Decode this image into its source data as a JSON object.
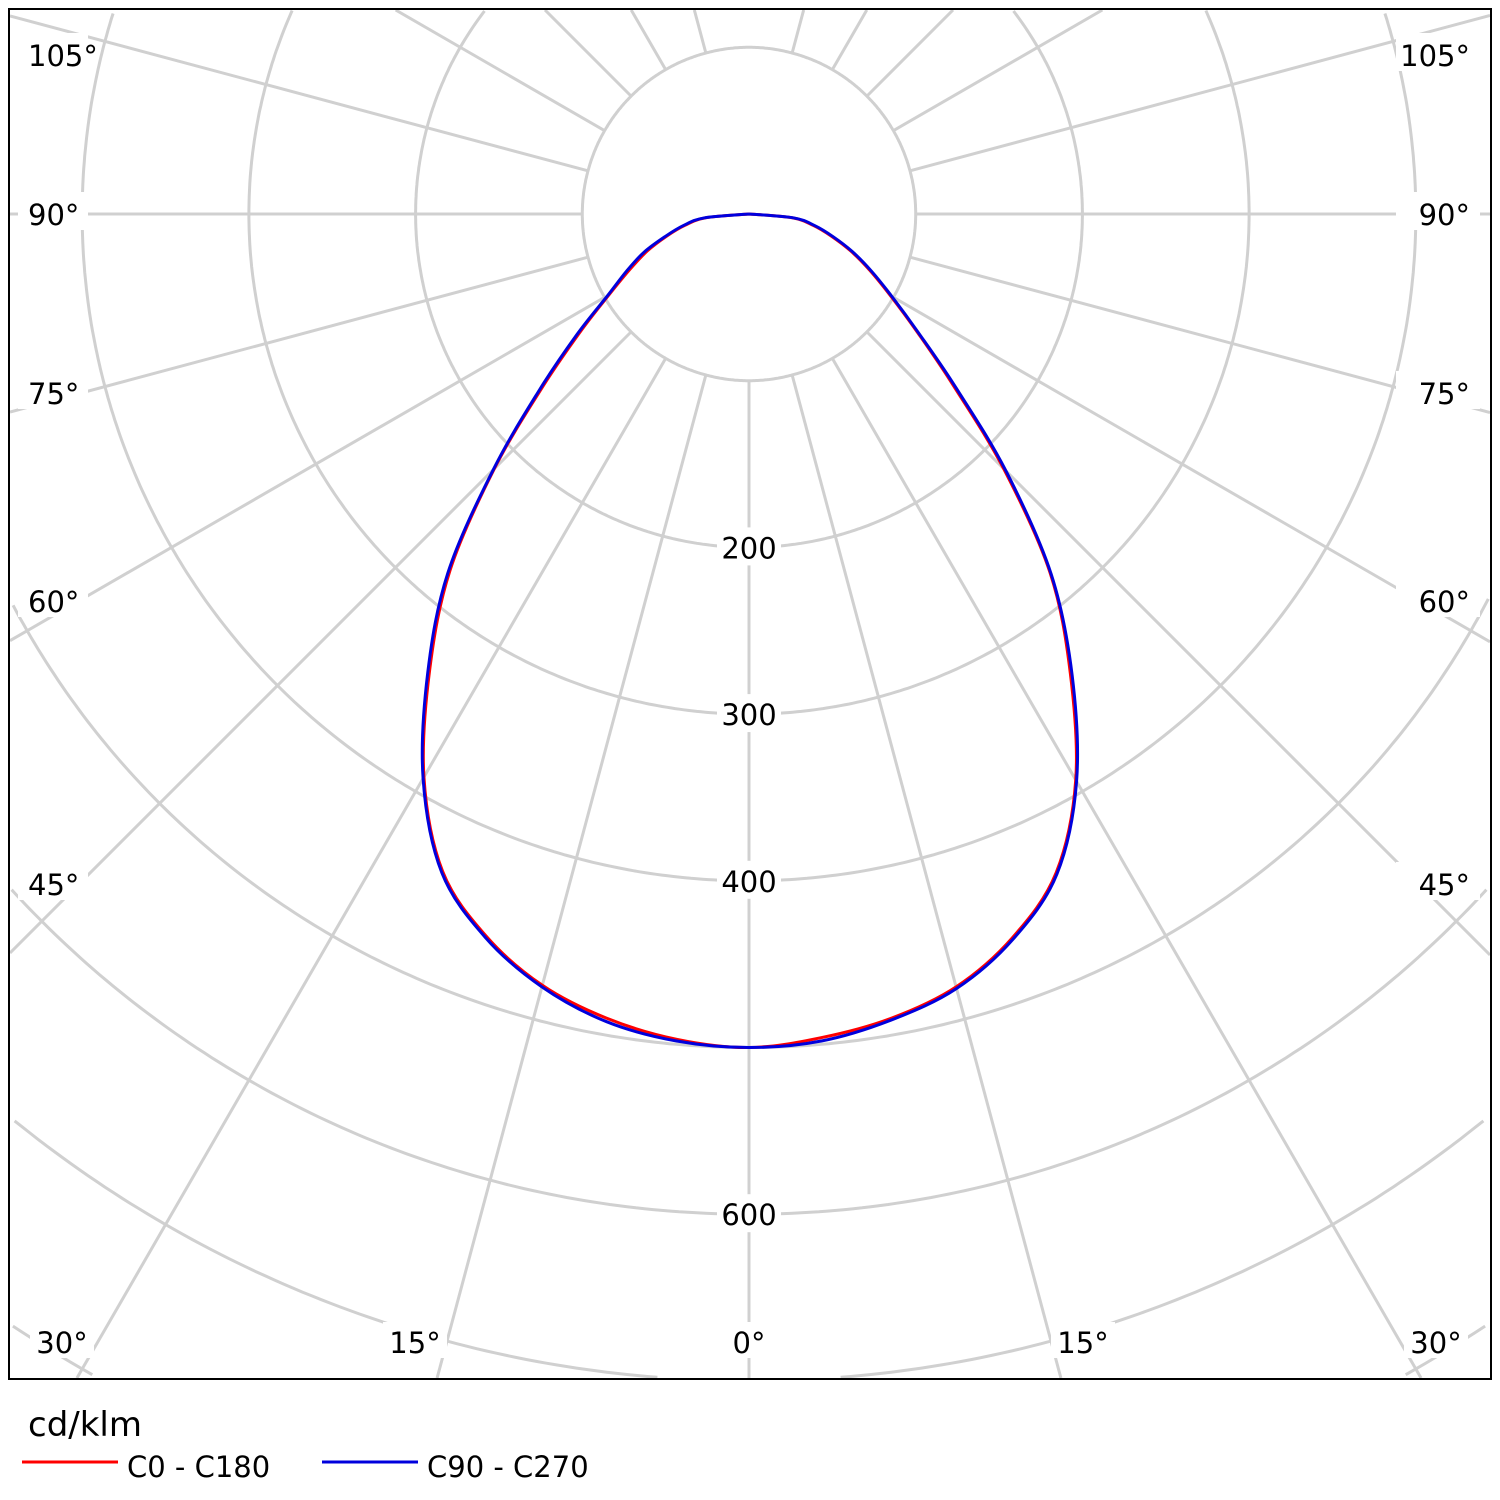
{
  "chart_data": {
    "type": "polar",
    "unit_label": "cd/klm",
    "radial_tick_labels": [
      "200",
      "300",
      "400",
      "600"
    ],
    "radial_ticks": [
      200,
      300,
      400,
      600
    ],
    "radial_grid": [
      100,
      200,
      300,
      400,
      500,
      600,
      700,
      800,
      900
    ],
    "angle_labels_left": [
      "105°",
      "90°",
      "75°",
      "60°",
      "45°",
      "30°",
      "15°"
    ],
    "angle_labels_right": [
      "105°",
      "90°",
      "75°",
      "60°",
      "45°",
      "30°",
      "15°"
    ],
    "angle_label_zero": "0°",
    "gamma": [
      0,
      5,
      10,
      15,
      20,
      25,
      30,
      35,
      40,
      45,
      50,
      55,
      60,
      65,
      70,
      75,
      80,
      85,
      90
    ],
    "series": [
      {
        "name": "C0 - C180",
        "color": "#ff0000",
        "left": [
          500,
          497,
          490,
          479,
          461,
          435,
          390,
          334,
          279,
          216,
          162,
          124,
          97,
          79,
          65,
          51,
          39,
          26,
          0
        ],
        "right": [
          500,
          496,
          490,
          480,
          462,
          436,
          392,
          336,
          281,
          216,
          160,
          123,
          98,
          80,
          65,
          51,
          39,
          26,
          0
        ]
      },
      {
        "name": "C90 - C270",
        "color": "#0000dd",
        "left": [
          500,
          498,
          492,
          480,
          462,
          436,
          391,
          336,
          281,
          217,
          164,
          126,
          98,
          81,
          67,
          52,
          40,
          27,
          0
        ],
        "right": [
          500,
          498,
          491,
          481,
          463,
          437,
          393,
          338,
          282,
          218,
          162,
          124,
          99,
          81,
          66,
          52,
          40,
          27,
          0
        ]
      }
    ]
  }
}
